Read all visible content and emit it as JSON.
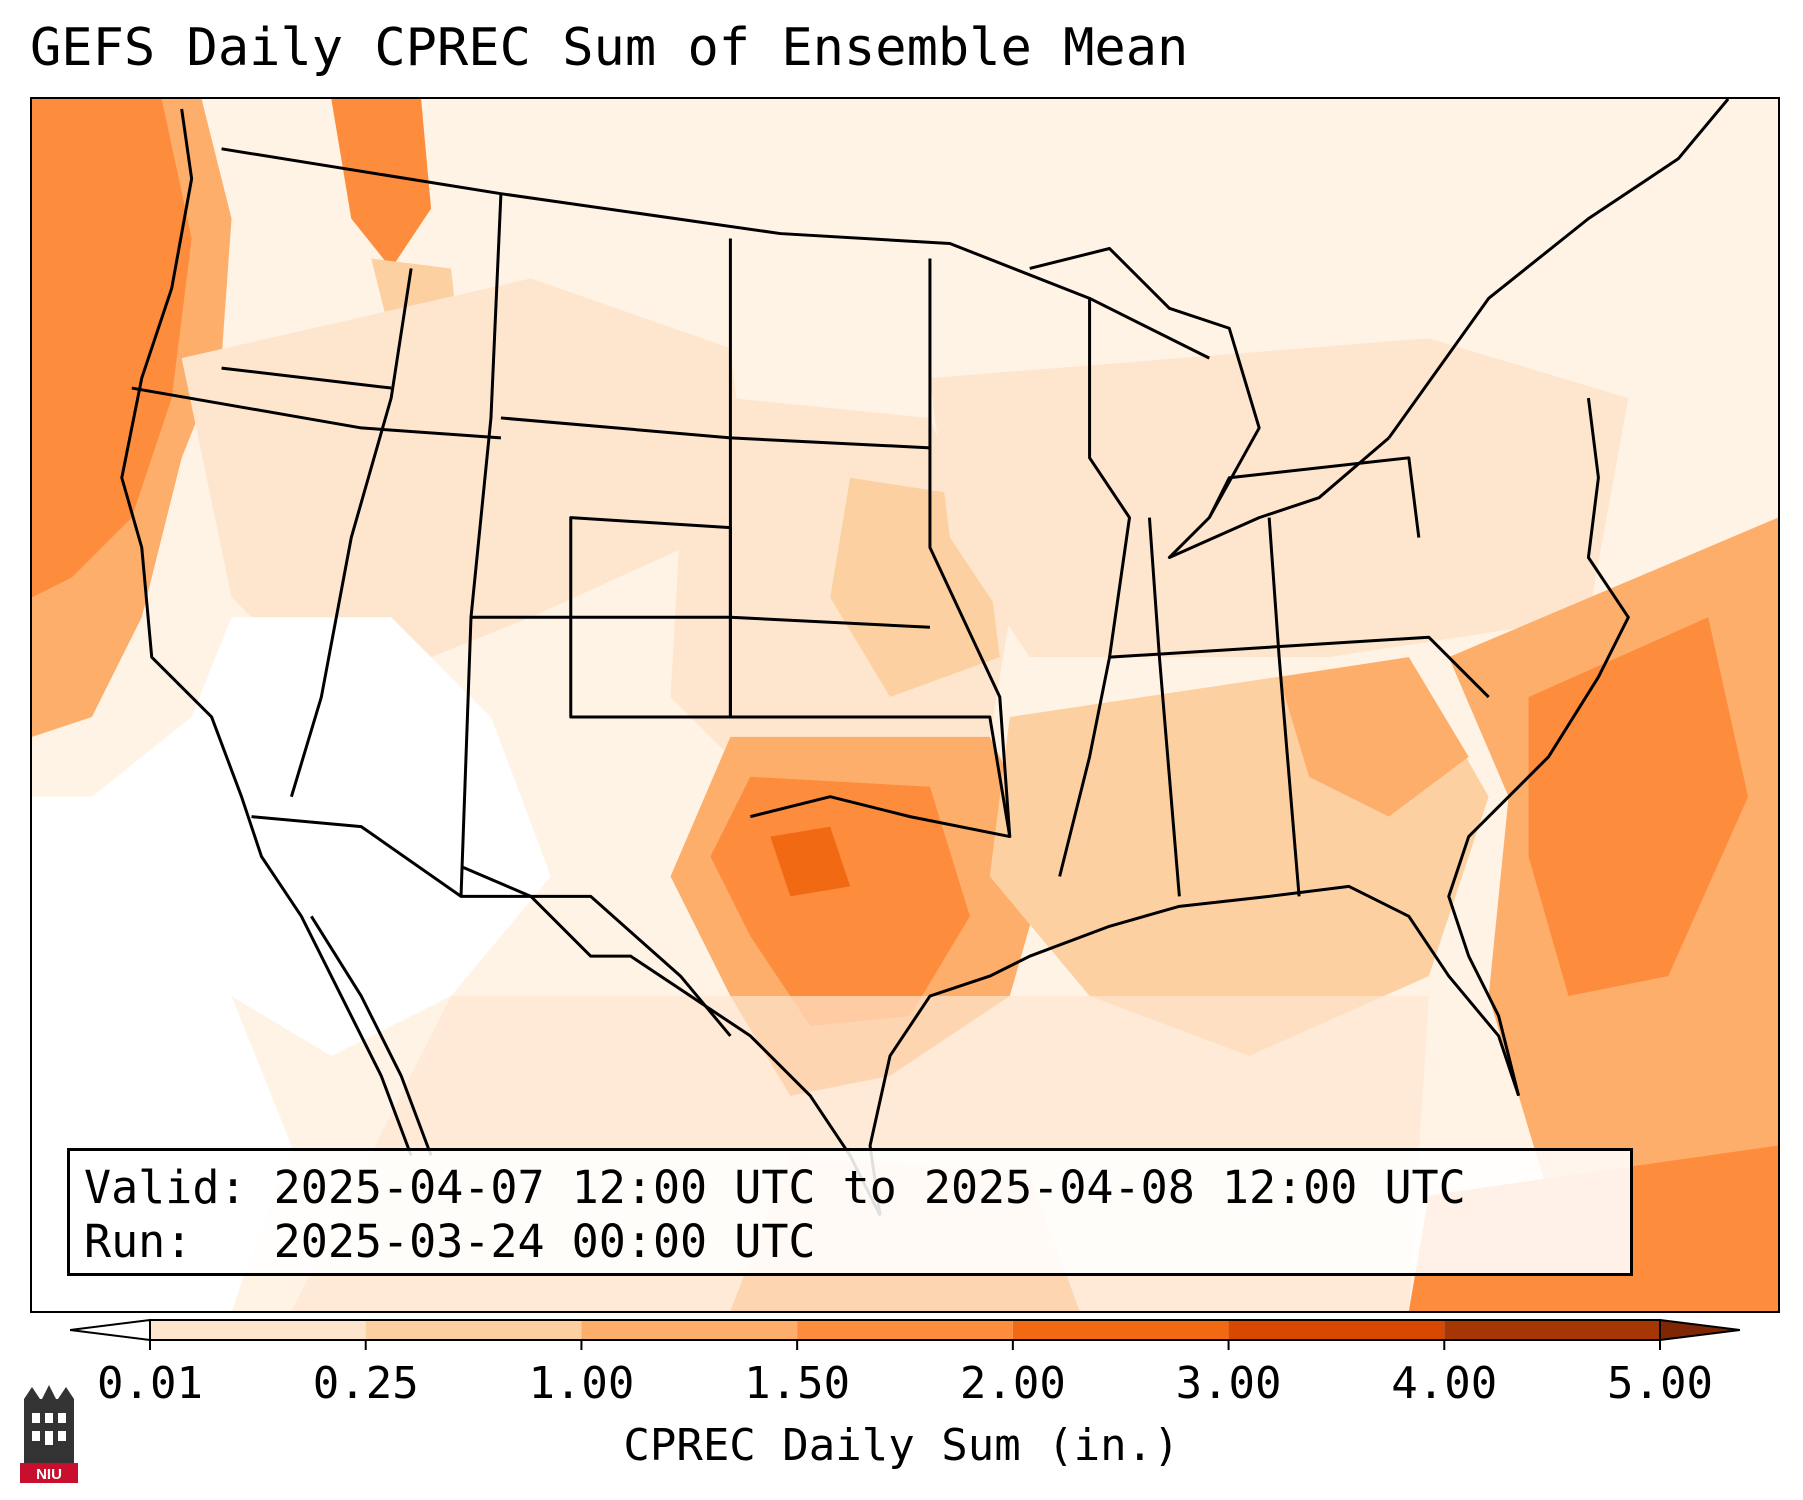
{
  "title": "GEFS Daily CPREC Sum of Ensemble Mean",
  "valid": {
    "valid_label": "Valid:",
    "valid_range": "2025-04-07 12:00 UTC to 2025-04-08 12:00 UTC",
    "run_label": "Run:",
    "run_time": "2025-03-24 00:00 UTC"
  },
  "colorbar": {
    "label": "CPREC Daily Sum (in.)",
    "ticks": [
      "0.01",
      "0.25",
      "1.00",
      "1.50",
      "2.00",
      "3.00",
      "4.00",
      "5.00"
    ],
    "colors": [
      "#fff5eb",
      "#fee6ce",
      "#fdd0a2",
      "#fdae6b",
      "#fd8d3c",
      "#f16913",
      "#d94801",
      "#a63603"
    ],
    "under_color": "#ffffff",
    "over_color": "#7f2704"
  },
  "logo": {
    "text": "NIU",
    "icon": "niu-castle-icon"
  },
  "map": {
    "region": "CONUS",
    "basemap_color": "#fff5eb",
    "border_color": "#000000"
  }
}
